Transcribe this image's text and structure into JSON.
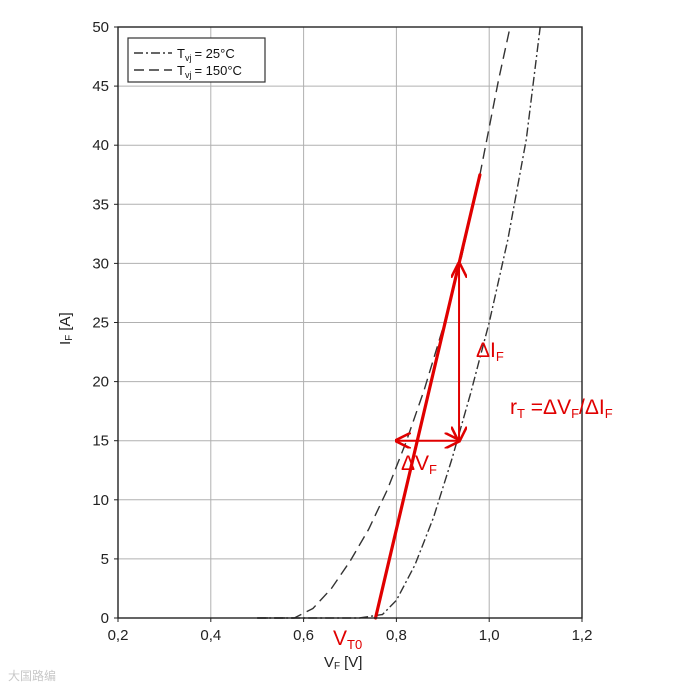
{
  "chart_data": {
    "type": "line",
    "xlabel": "V",
    "xlabel_sub": "F",
    "xlabel_unit": "[V]",
    "ylabel": "I",
    "ylabel_sub": "F",
    "ylabel_unit": "[A]",
    "xlim": [
      0.2,
      1.2
    ],
    "ylim": [
      0,
      50
    ],
    "x_ticks": [
      "0,2",
      "0,4",
      "0,6",
      "0,8",
      "1,0",
      "1,2"
    ],
    "y_ticks": [
      "0",
      "5",
      "10",
      "15",
      "20",
      "25",
      "30",
      "35",
      "40",
      "45",
      "50"
    ],
    "grid": true,
    "legend_position": "top-left",
    "series": [
      {
        "name": "T",
        "name_sub": "vj",
        "name_value": "= 25°C",
        "style": "dash-dot",
        "color": "#333333",
        "x": [
          0.5,
          0.72,
          0.77,
          0.8,
          0.84,
          0.88,
          0.92,
          0.96,
          1.0,
          1.04,
          1.08,
          1.11
        ],
        "y": [
          0,
          0,
          0.3,
          1.5,
          4.5,
          8.5,
          13.5,
          19.0,
          25.0,
          32.0,
          40.5,
          50
        ]
      },
      {
        "name": "T",
        "name_sub": "vj",
        "name_value": "= 150°C",
        "style": "dashed",
        "color": "#333333",
        "x": [
          0.5,
          0.58,
          0.62,
          0.66,
          0.7,
          0.74,
          0.78,
          0.82,
          0.86,
          0.9,
          0.94,
          0.98,
          1.02,
          1.045
        ],
        "y": [
          0,
          0,
          0.8,
          2.5,
          4.8,
          7.5,
          10.8,
          14.8,
          19.3,
          24.5,
          30.5,
          37.5,
          45.5,
          50
        ]
      }
    ],
    "annotations": {
      "tangent_line": {
        "color": "#e00000",
        "x": [
          0.755,
          0.98
        ],
        "y": [
          0,
          37.5
        ]
      },
      "vt0_label": {
        "text": "V",
        "sub": "T0"
      },
      "delta_vf_label": {
        "text": "ΔV",
        "sub": "F"
      },
      "delta_if_label": {
        "text": "ΔI",
        "sub": "F"
      },
      "rt_formula": {
        "r": "r",
        "r_sub": "T",
        "eq": " =ΔV",
        "vf_sub": "F",
        "slash": "/ΔI",
        "if_sub": "F"
      },
      "arrow_horizontal": {
        "x": [
          0.8,
          0.935
        ],
        "y": 15
      },
      "arrow_vertical": {
        "x": 0.935,
        "y": [
          15,
          30
        ]
      }
    }
  },
  "watermark": "大国路编"
}
